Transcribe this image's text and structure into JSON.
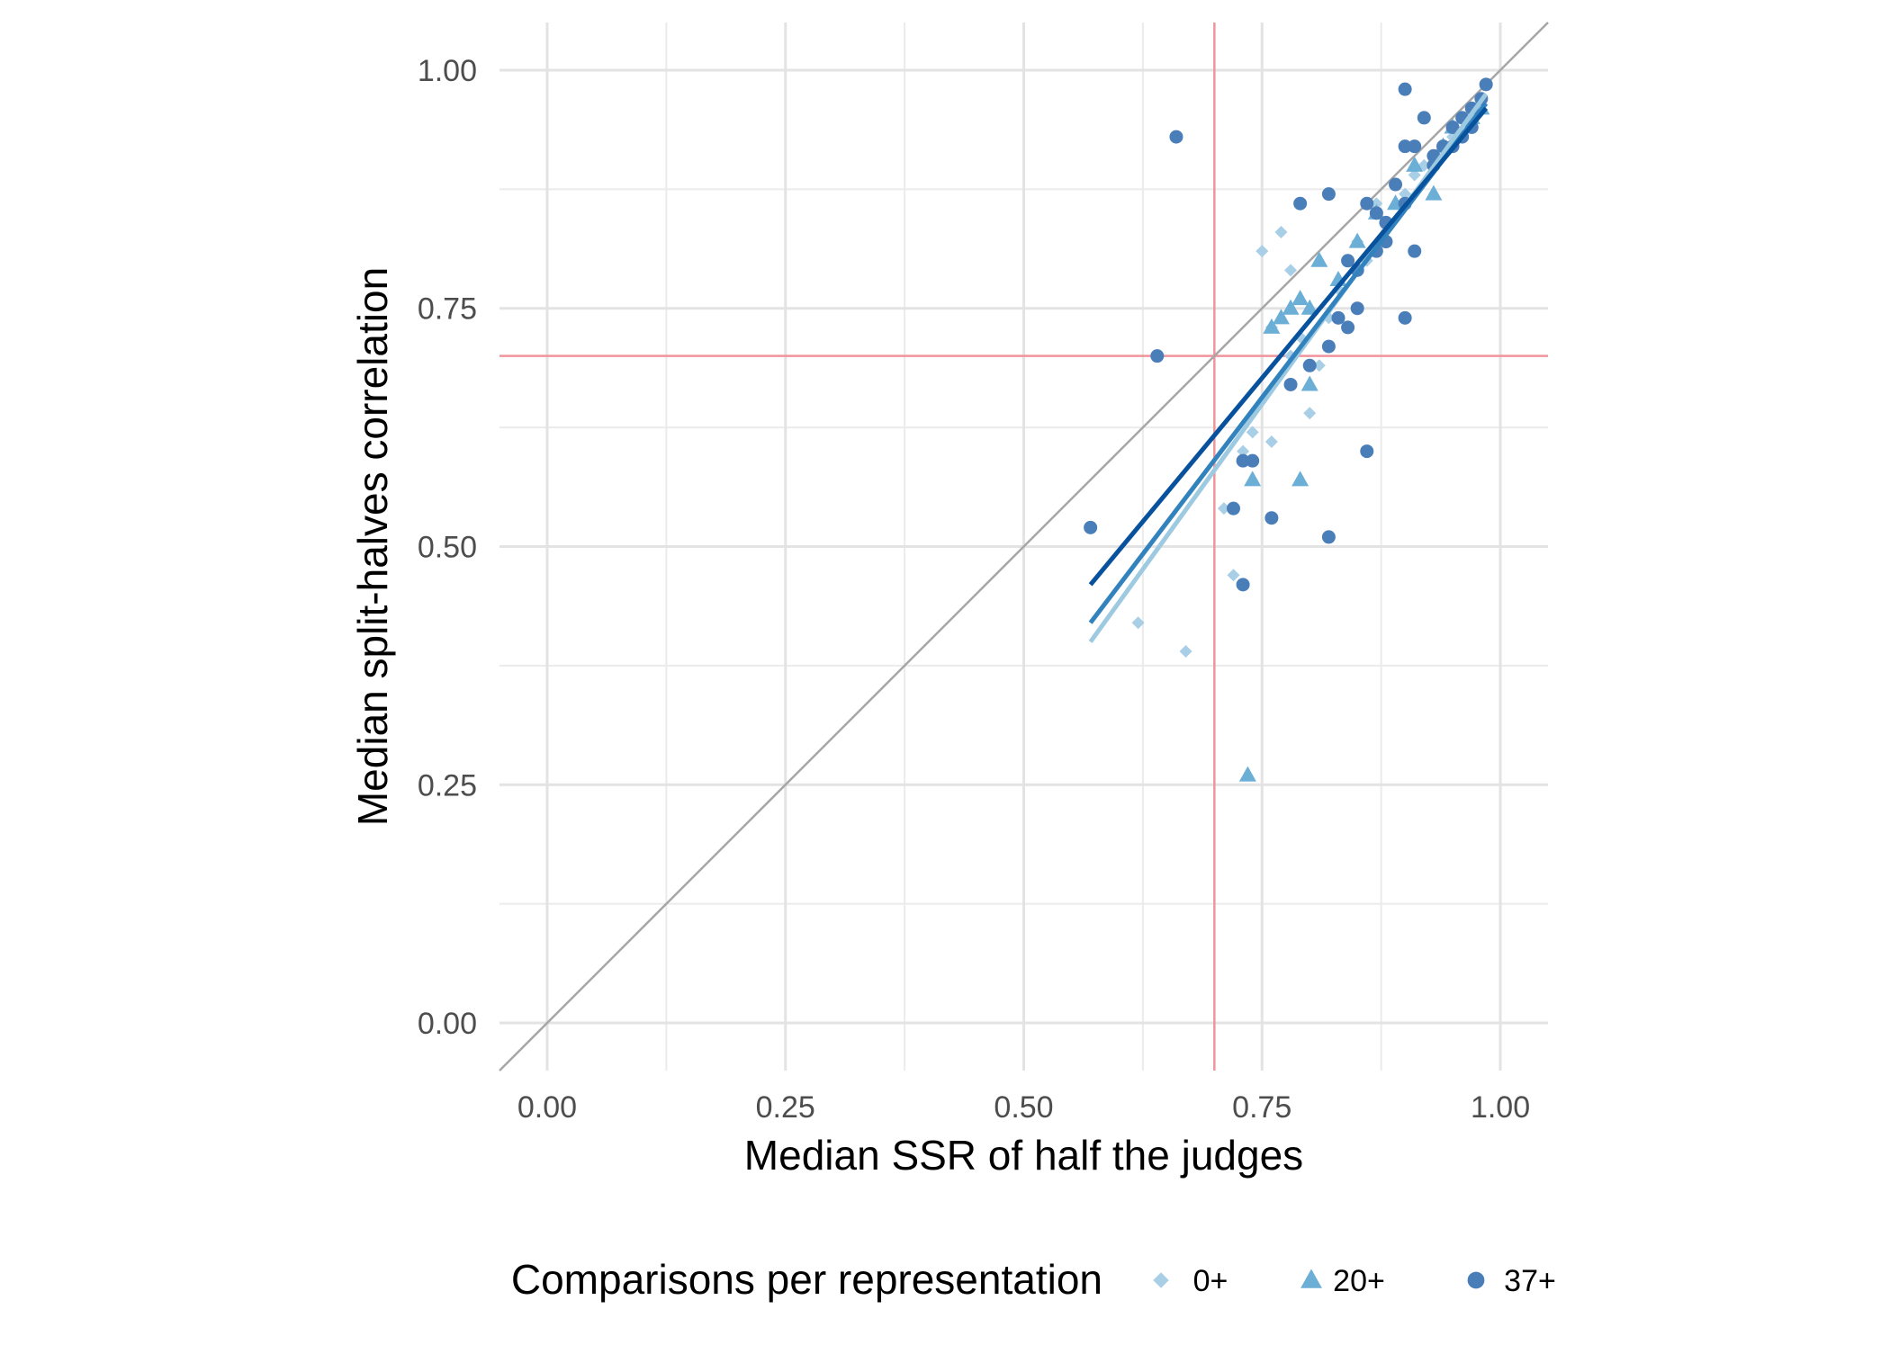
{
  "chart_data": {
    "type": "scatter",
    "title": "",
    "xlabel": "Median SSR of half the judges",
    "ylabel": "Median split-halves correlation",
    "xlim": [
      -0.05,
      1.05
    ],
    "ylim": [
      -0.05,
      1.05
    ],
    "x_ticks": [
      0.0,
      0.25,
      0.5,
      0.75,
      1.0
    ],
    "x_tick_labels": [
      "0.00",
      "0.25",
      "0.50",
      "0.75",
      "1.00"
    ],
    "y_ticks": [
      0.0,
      0.25,
      0.5,
      0.75,
      1.0
    ],
    "y_tick_labels": [
      "0.00",
      "0.25",
      "0.50",
      "0.75",
      "1.00"
    ],
    "grid": true,
    "legend_position": "bottom",
    "legend_title": "Comparisons per representation",
    "reference_lines": {
      "identity": {
        "from": [
          -0.05,
          -0.05
        ],
        "to": [
          1.05,
          1.05
        ],
        "color": "#a6a6a6"
      },
      "vertical_x": 0.7,
      "horizontal_y": 0.7,
      "threshold_color": "#f0949c"
    },
    "series": [
      {
        "name": "0+",
        "shape": "diamond",
        "color": "#a9cfe6",
        "line_color": "#9ecae1",
        "fit": {
          "x0": 0.57,
          "y0": 0.4,
          "x1": 0.985,
          "y1": 0.975
        },
        "points": [
          [
            0.62,
            0.42
          ],
          [
            0.67,
            0.39
          ],
          [
            0.72,
            0.47
          ],
          [
            0.75,
            0.81
          ],
          [
            0.77,
            0.83
          ],
          [
            0.76,
            0.73
          ],
          [
            0.78,
            0.79
          ],
          [
            0.74,
            0.62
          ],
          [
            0.76,
            0.61
          ],
          [
            0.73,
            0.6
          ],
          [
            0.8,
            0.64
          ],
          [
            0.81,
            0.69
          ],
          [
            0.82,
            0.74
          ],
          [
            0.85,
            0.82
          ],
          [
            0.86,
            0.8
          ],
          [
            0.88,
            0.84
          ],
          [
            0.9,
            0.87
          ],
          [
            0.91,
            0.89
          ],
          [
            0.93,
            0.91
          ],
          [
            0.95,
            0.93
          ],
          [
            0.97,
            0.96
          ],
          [
            0.98,
            0.97
          ],
          [
            0.71,
            0.54
          ],
          [
            0.83,
            0.77
          ],
          [
            0.79,
            0.72
          ],
          [
            0.87,
            0.86
          ],
          [
            0.94,
            0.92
          ],
          [
            0.78,
            0.7
          ],
          [
            0.92,
            0.9
          ]
        ]
      },
      {
        "name": "20+",
        "shape": "triangle",
        "color": "#6baed6",
        "line_color": "#3182bd",
        "fit": {
          "x0": 0.57,
          "y0": 0.42,
          "x1": 0.985,
          "y1": 0.965
        },
        "points": [
          [
            0.735,
            0.26
          ],
          [
            0.74,
            0.57
          ],
          [
            0.79,
            0.57
          ],
          [
            0.8,
            0.67
          ],
          [
            0.78,
            0.75
          ],
          [
            0.77,
            0.74
          ],
          [
            0.79,
            0.76
          ],
          [
            0.76,
            0.73
          ],
          [
            0.81,
            0.8
          ],
          [
            0.83,
            0.78
          ],
          [
            0.93,
            0.87
          ],
          [
            0.89,
            0.86
          ],
          [
            0.91,
            0.9
          ],
          [
            0.95,
            0.94
          ],
          [
            0.97,
            0.95
          ],
          [
            0.98,
            0.96
          ],
          [
            0.85,
            0.82
          ],
          [
            0.8,
            0.75
          ],
          [
            0.87,
            0.85
          ],
          [
            0.94,
            0.92
          ]
        ]
      },
      {
        "name": "37+",
        "shape": "circle",
        "color": "#4a7eb9",
        "line_color": "#08519c",
        "fit": {
          "x0": 0.57,
          "y0": 0.46,
          "x1": 0.985,
          "y1": 0.96
        },
        "points": [
          [
            0.57,
            0.52
          ],
          [
            0.66,
            0.93
          ],
          [
            0.64,
            0.7
          ],
          [
            0.73,
            0.46
          ],
          [
            0.72,
            0.54
          ],
          [
            0.74,
            0.59
          ],
          [
            0.76,
            0.53
          ],
          [
            0.82,
            0.51
          ],
          [
            0.86,
            0.6
          ],
          [
            0.82,
            0.87
          ],
          [
            0.79,
            0.86
          ],
          [
            0.9,
            0.98
          ],
          [
            0.9,
            0.74
          ],
          [
            0.91,
            0.81
          ],
          [
            0.92,
            0.95
          ],
          [
            0.9,
            0.92
          ],
          [
            0.91,
            0.92
          ],
          [
            0.93,
            0.91
          ],
          [
            0.95,
            0.94
          ],
          [
            0.96,
            0.95
          ],
          [
            0.97,
            0.96
          ],
          [
            0.98,
            0.97
          ],
          [
            0.985,
            0.985
          ],
          [
            0.87,
            0.85
          ],
          [
            0.86,
            0.86
          ],
          [
            0.85,
            0.79
          ],
          [
            0.84,
            0.8
          ],
          [
            0.83,
            0.74
          ],
          [
            0.84,
            0.73
          ],
          [
            0.8,
            0.69
          ],
          [
            0.78,
            0.67
          ],
          [
            0.88,
            0.84
          ],
          [
            0.89,
            0.88
          ],
          [
            0.85,
            0.75
          ],
          [
            0.82,
            0.71
          ],
          [
            0.93,
            0.9
          ],
          [
            0.94,
            0.92
          ],
          [
            0.96,
            0.93
          ],
          [
            0.97,
            0.94
          ],
          [
            0.73,
            0.59
          ],
          [
            0.95,
            0.92
          ],
          [
            0.9,
            0.86
          ],
          [
            0.87,
            0.81
          ],
          [
            0.88,
            0.82
          ]
        ]
      }
    ]
  }
}
